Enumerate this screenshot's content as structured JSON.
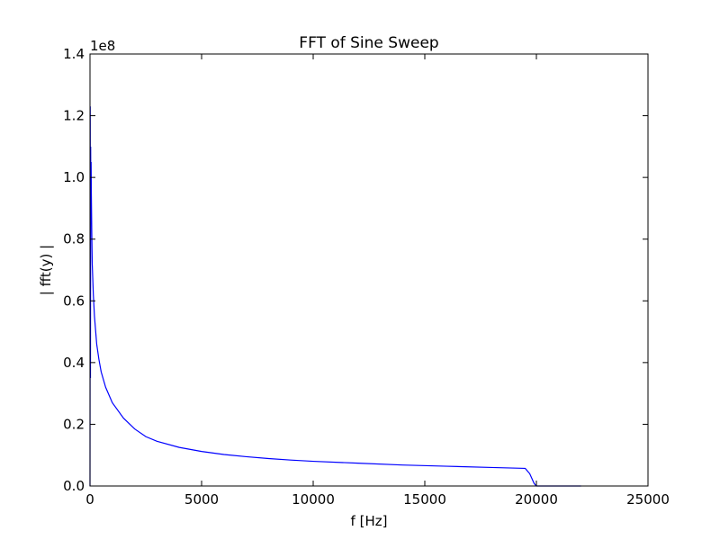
{
  "chart_data": {
    "type": "line",
    "title": "FFT of Sine Sweep",
    "xlabel": "f [Hz]",
    "ylabel": "| fft(y) |",
    "y_offset_label": "1e8",
    "xlim": [
      0,
      25000
    ],
    "ylim": [
      0,
      1.4
    ],
    "x_ticks": [
      0,
      5000,
      10000,
      15000,
      20000,
      25000
    ],
    "x_tick_labels": [
      "0",
      "5000",
      "10000",
      "15000",
      "20000",
      "25000"
    ],
    "y_ticks": [
      0.0,
      0.2,
      0.4,
      0.6,
      0.8,
      1.0,
      1.2,
      1.4
    ],
    "y_tick_labels": [
      "0.0",
      "0.2",
      "0.4",
      "0.6",
      "0.8",
      "1.0",
      "1.2",
      "1.4"
    ],
    "grid": false,
    "series": [
      {
        "color": "#0000ff",
        "x": [
          0,
          10,
          20,
          30,
          40,
          50,
          60,
          80,
          100,
          150,
          200,
          300,
          400,
          500,
          700,
          1000,
          1500,
          2000,
          2500,
          3000,
          4000,
          5000,
          6000,
          7000,
          8000,
          9000,
          10000,
          12000,
          14000,
          16000,
          18000,
          19500,
          19700,
          19900,
          20000,
          22000
        ],
        "y": [
          0.0,
          1.23,
          0.35,
          1.1,
          0.9,
          1.05,
          0.95,
          0.82,
          0.72,
          0.62,
          0.55,
          0.46,
          0.41,
          0.37,
          0.32,
          0.27,
          0.22,
          0.185,
          0.16,
          0.145,
          0.125,
          0.112,
          0.102,
          0.095,
          0.089,
          0.084,
          0.08,
          0.074,
          0.068,
          0.064,
          0.06,
          0.057,
          0.04,
          0.008,
          0.0,
          0.0
        ]
      }
    ]
  }
}
